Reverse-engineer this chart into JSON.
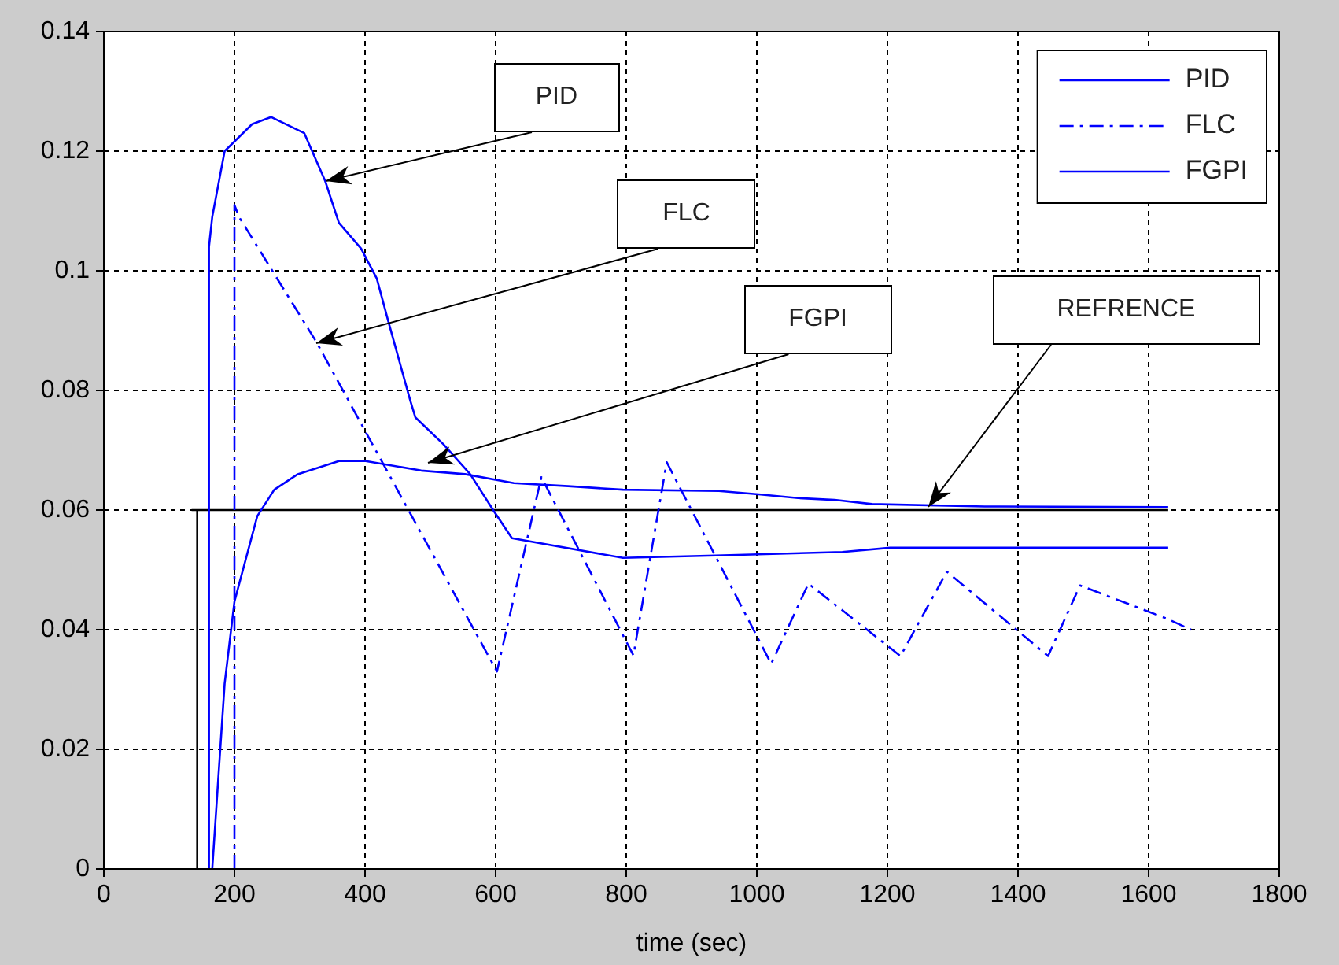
{
  "chart_data": {
    "type": "line",
    "xlabel": "time (sec)",
    "xlim": [
      0,
      1800
    ],
    "xticks": [
      0,
      200,
      400,
      600,
      800,
      1000,
      1200,
      1400,
      1600,
      1800
    ],
    "ylim": [
      0,
      0.14
    ],
    "yticks": [
      0,
      0.02,
      0.04,
      0.06,
      0.08,
      0.1,
      0.12,
      0.14
    ],
    "grid": true,
    "legend": "top right",
    "marker": "none",
    "series": [
      {
        "name": "PID",
        "color": "#0000ff",
        "line_style": "solid",
        "x": [
          160,
          161,
          166,
          185,
          227,
          256,
          307,
          339,
          360,
          394,
          418,
          435,
          469,
          477,
          520,
          561,
          598,
          625,
          795,
          937,
          1131,
          1204,
          1630
        ],
        "values": [
          0,
          0.104,
          0.109,
          0.12,
          0.1245,
          0.1257,
          0.123,
          0.115,
          0.108,
          0.1037,
          0.0987,
          0.0918,
          0.0784,
          0.0755,
          0.071,
          0.066,
          0.0597,
          0.0553,
          0.052,
          0.0524,
          0.053,
          0.0537,
          0.0537
        ]
      },
      {
        "name": "FLC",
        "color": "#0000ff",
        "line_style": "dashed",
        "x": [
          200,
          200,
          207,
          326,
          602,
          670,
          811,
          862,
          1022,
          1079,
          1220,
          1291,
          1446,
          1495,
          1629,
          1665
        ],
        "values": [
          0,
          0.111,
          0.109,
          0.088,
          0.033,
          0.0655,
          0.0357,
          0.068,
          0.0343,
          0.0477,
          0.0356,
          0.0497,
          0.0356,
          0.0474,
          0.0418,
          0.04
        ]
      },
      {
        "name": "FGPI",
        "color": "#0000ff",
        "line_style": "solid",
        "x": [
          166,
          185,
          200,
          235,
          261,
          297,
          360,
          401,
          486,
          553,
          628,
          711,
          795,
          942,
          1006,
          1063,
          1119,
          1176,
          1349,
          1630
        ],
        "values": [
          0,
          0.031,
          0.0447,
          0.059,
          0.0634,
          0.066,
          0.0682,
          0.0682,
          0.0666,
          0.066,
          0.0645,
          0.064,
          0.0634,
          0.0632,
          0.0626,
          0.062,
          0.0617,
          0.061,
          0.0606,
          0.0605
        ]
      },
      {
        "color": "#000000",
        "line_style": "solid",
        "x": [
          143,
          143,
          135,
          1630
        ],
        "values": [
          0,
          0.06,
          0.06,
          0.06
        ]
      }
    ],
    "annotations": [
      {
        "text": "PID",
        "x": 339,
        "y": 0.115
      },
      {
        "text": "FLC",
        "x": 326,
        "y": 0.088
      },
      {
        "text": "FGPI",
        "x": 496,
        "y": 0.068
      },
      {
        "text": "REFRENCE",
        "x": 1262,
        "y": 0.0605
      }
    ]
  }
}
